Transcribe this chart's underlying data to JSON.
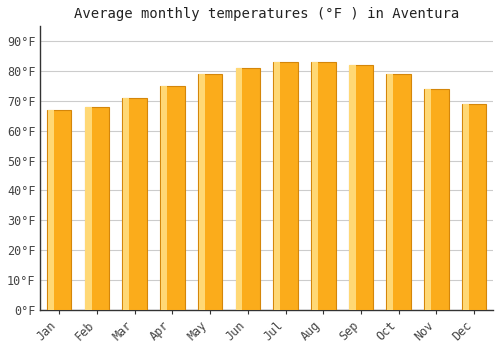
{
  "title": "Average monthly temperatures (°F ) in Aventura",
  "months": [
    "Jan",
    "Feb",
    "Mar",
    "Apr",
    "May",
    "Jun",
    "Jul",
    "Aug",
    "Sep",
    "Oct",
    "Nov",
    "Dec"
  ],
  "values": [
    67,
    68,
    71,
    75,
    79,
    81,
    83,
    83,
    82,
    79,
    74,
    69
  ],
  "bar_face_color": "#FBAC1B",
  "bar_edge_color": "#D4860A",
  "background_color": "#ffffff",
  "plot_bg_color": "#ffffff",
  "grid_color": "#cccccc",
  "yticks": [
    0,
    10,
    20,
    30,
    40,
    50,
    60,
    70,
    80,
    90
  ],
  "ylim": [
    0,
    95
  ],
  "title_fontsize": 10,
  "tick_fontsize": 8.5,
  "tick_font": "monospace",
  "title_color": "#222222",
  "tick_color": "#444444",
  "spine_color": "#333333"
}
